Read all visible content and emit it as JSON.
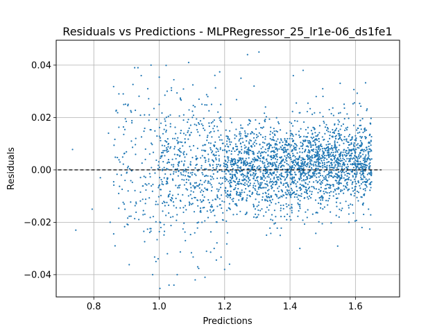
{
  "chart_data": {
    "type": "scatter",
    "title": "Residuals vs Predictions - MLPRegressor_25_lr1e-06_ds1fe1",
    "xlabel": "Predictions",
    "ylabel": "Residuals",
    "xlim": [
      0.685,
      1.735
    ],
    "ylim": [
      -0.0485,
      0.0495
    ],
    "xticks": [
      0.8,
      1.0,
      1.2,
      1.4,
      1.6
    ],
    "xtick_labels": [
      "0.8",
      "1.0",
      "1.2",
      "1.4",
      "1.6"
    ],
    "yticks": [
      -0.04,
      -0.02,
      0.0,
      0.02,
      0.04
    ],
    "ytick_labels": [
      "−0.04",
      "−0.02",
      "0.00",
      "0.02",
      "0.04"
    ],
    "grid": true,
    "reference_line": {
      "y": 0.0,
      "x_range": [
        0.69,
        1.68
      ],
      "style": "dashed",
      "color": "#000000"
    },
    "point_color": "#1f77b4",
    "points": [
      [
        0.735,
        0.0078
      ],
      [
        0.745,
        -0.023
      ],
      [
        0.795,
        -0.015
      ],
      [
        0.82,
        -0.003
      ],
      [
        0.845,
        0.014
      ],
      [
        0.85,
        -0.02
      ],
      [
        0.865,
        -0.029
      ],
      [
        0.88,
        0.003
      ],
      [
        0.89,
        0.029
      ],
      [
        0.905,
        0.025
      ],
      [
        0.915,
        0.011
      ],
      [
        0.925,
        0.039
      ],
      [
        0.935,
        0.039
      ],
      [
        0.945,
        0.036
      ],
      [
        0.955,
        0.021
      ],
      [
        0.965,
        0.031
      ],
      [
        0.975,
        0.04
      ],
      [
        0.98,
        -0.04
      ],
      [
        0.99,
        -0.035
      ],
      [
        1.0,
        0.025
      ],
      [
        1.005,
        -0.022
      ],
      [
        1.02,
        0.017
      ],
      [
        1.025,
        -0.032
      ],
      [
        1.03,
        -0.044
      ],
      [
        1.045,
        -0.044
      ],
      [
        1.055,
        -0.04
      ],
      [
        1.065,
        0.027
      ],
      [
        1.08,
        -0.027
      ],
      [
        1.09,
        0.041
      ],
      [
        1.11,
        -0.042
      ],
      [
        1.14,
        -0.041
      ],
      [
        1.16,
        0.025
      ],
      [
        1.18,
        0.015
      ],
      [
        1.2,
        -0.038
      ],
      [
        1.215,
        -0.036
      ],
      [
        1.25,
        0.035
      ],
      [
        1.27,
        0.044
      ],
      [
        1.29,
        0.032
      ],
      [
        1.305,
        0.045
      ],
      [
        1.325,
        0.024
      ],
      [
        1.37,
        -0.025
      ],
      [
        1.41,
        0.036
      ],
      [
        1.43,
        -0.03
      ],
      [
        1.44,
        0.038
      ],
      [
        1.48,
        0.028
      ],
      [
        1.5,
        0.031
      ],
      [
        1.52,
        0.023
      ],
      [
        1.55,
        -0.018
      ],
      [
        1.58,
        -0.02
      ],
      [
        1.6,
        0.013
      ],
      [
        1.62,
        -0.022
      ],
      [
        1.625,
        -0.017
      ],
      [
        1.64,
        -0.015
      ]
    ],
    "generated_density": {
      "description_bins": [
        {
          "x_range": [
            0.86,
            1.0
          ],
          "count": 140,
          "spread": 0.015
        },
        {
          "x_range": [
            1.0,
            1.2
          ],
          "count": 520,
          "spread": 0.013
        },
        {
          "x_range": [
            1.2,
            1.4
          ],
          "count": 900,
          "spread": 0.0085
        },
        {
          "x_range": [
            1.4,
            1.65
          ],
          "count": 1300,
          "spread": 0.0075
        }
      ]
    }
  }
}
